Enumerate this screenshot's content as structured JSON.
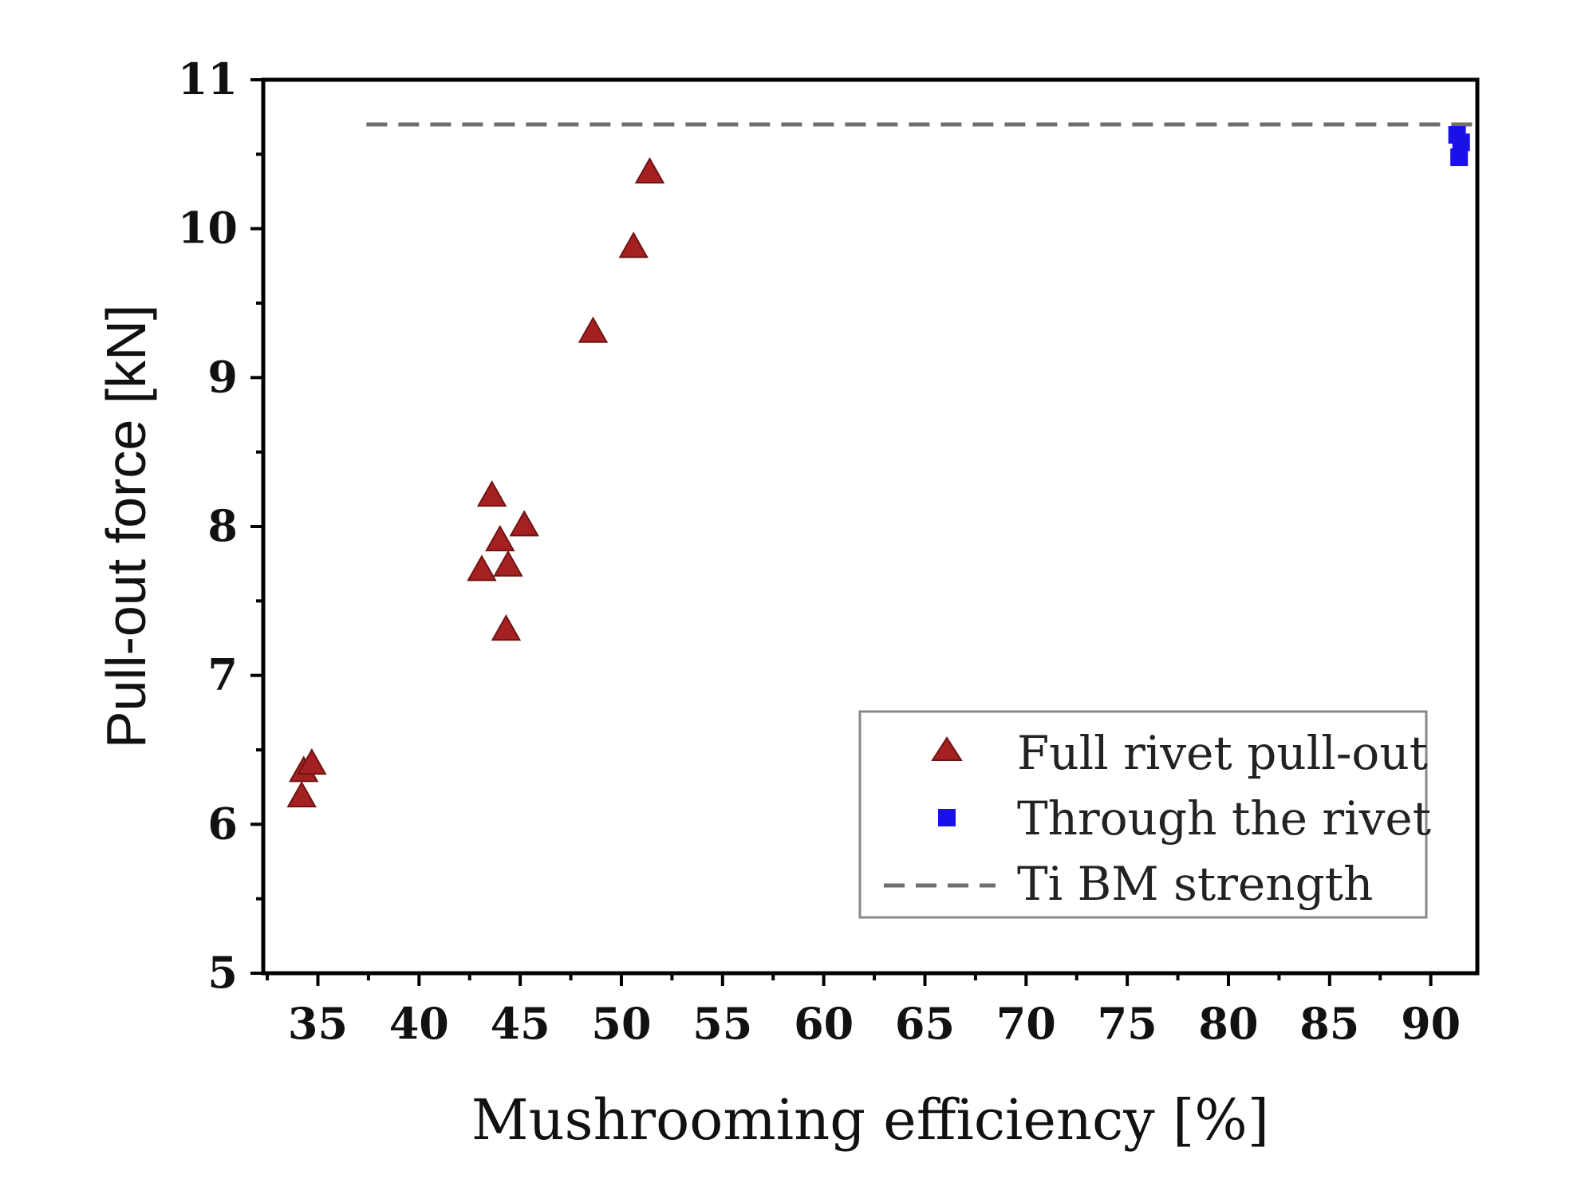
{
  "chart_data": {
    "type": "scatter",
    "title": "",
    "xlabel": "Mushrooming efficiency [%]",
    "ylabel": "Pull-out force [kN]",
    "xlim": [
      32.3,
      92.3
    ],
    "ylim": [
      5,
      11
    ],
    "xticks": [
      35,
      40,
      45,
      50,
      55,
      60,
      65,
      70,
      75,
      80,
      85,
      90
    ],
    "yticks": [
      5,
      6,
      7,
      8,
      9,
      10,
      11
    ],
    "grid": false,
    "legend_position": "bottom-right",
    "series": [
      {
        "name": "Full rivet pull-out",
        "marker": "triangle",
        "color": "#a52020",
        "points": [
          {
            "x": 34.2,
            "y": 6.18
          },
          {
            "x": 34.3,
            "y": 6.35
          },
          {
            "x": 34.7,
            "y": 6.4
          },
          {
            "x": 43.1,
            "y": 7.7
          },
          {
            "x": 43.6,
            "y": 8.2
          },
          {
            "x": 44.0,
            "y": 7.9
          },
          {
            "x": 44.3,
            "y": 7.3
          },
          {
            "x": 44.4,
            "y": 7.73
          },
          {
            "x": 45.2,
            "y": 8.0
          },
          {
            "x": 48.6,
            "y": 9.3
          },
          {
            "x": 50.6,
            "y": 9.87
          },
          {
            "x": 51.4,
            "y": 10.37
          }
        ]
      },
      {
        "name": "Through the rivet",
        "marker": "square",
        "color": "#1a10e8",
        "points": [
          {
            "x": 91.3,
            "y": 10.63
          },
          {
            "x": 91.5,
            "y": 10.58
          },
          {
            "x": 91.4,
            "y": 10.48
          }
        ]
      }
    ],
    "reference_lines": [
      {
        "name": "Ti BM strength",
        "style": "dashed",
        "color": "#6e6e6e",
        "y": 10.7,
        "x_start": 37.4,
        "x_end": 92.3
      }
    ]
  }
}
